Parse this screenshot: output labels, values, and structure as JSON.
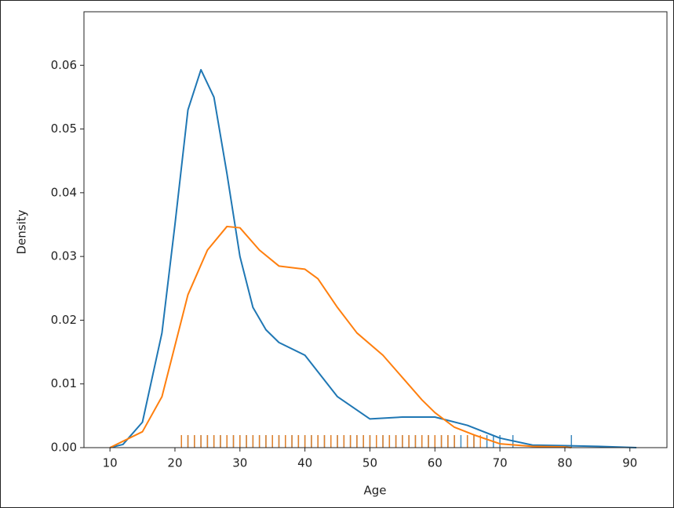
{
  "chart_data": {
    "type": "kde",
    "x_label": "Age",
    "y_label": "Density",
    "xlim": [
      6,
      95.7
    ],
    "ylim": [
      0,
      0.0684
    ],
    "xticks": [
      10,
      20,
      30,
      40,
      50,
      60,
      70,
      80,
      90
    ],
    "yticks": [
      {
        "value": 0,
        "label": "0.00"
      },
      {
        "value": 0.01,
        "label": "0.01"
      },
      {
        "value": 0.02,
        "label": "0.02"
      },
      {
        "value": 0.03,
        "label": "0.03"
      },
      {
        "value": 0.04,
        "label": "0.04"
      },
      {
        "value": 0.05,
        "label": "0.05"
      },
      {
        "value": 0.06,
        "label": "0.06"
      }
    ],
    "series": [
      {
        "color": "#1f77b4",
        "x": [
          10,
          12,
          15,
          18,
          20,
          22,
          24,
          26,
          28,
          30,
          32,
          34,
          36,
          40,
          45,
          50,
          55,
          60,
          65,
          70,
          75,
          80,
          85,
          91
        ],
        "values": [
          0,
          0.0005,
          0.004,
          0.018,
          0.035,
          0.053,
          0.0593,
          0.055,
          0.043,
          0.03,
          0.022,
          0.0185,
          0.0165,
          0.0145,
          0.008,
          0.0045,
          0.0048,
          0.0048,
          0.0035,
          0.0015,
          0.0004,
          0.0003,
          0.0002,
          0
        ],
        "rug": [
          21,
          22,
          23,
          24,
          25,
          26,
          27,
          28,
          29,
          30,
          31,
          32,
          33,
          34,
          35,
          36,
          37,
          38,
          39,
          40,
          41,
          42,
          43,
          44,
          45,
          46,
          47,
          48,
          49,
          50,
          51,
          52,
          53,
          54,
          55,
          56,
          57,
          58,
          59,
          60,
          61,
          62,
          63,
          64,
          65,
          66,
          68,
          69,
          70,
          72,
          81
        ]
      },
      {
        "color": "#ff7f0e",
        "x": [
          10,
          15,
          18,
          20,
          22,
          25,
          28,
          30,
          33,
          36,
          40,
          42,
          45,
          48,
          52,
          55,
          58,
          60,
          63,
          66,
          70,
          75,
          80,
          81
        ],
        "values": [
          0,
          0.0025,
          0.008,
          0.016,
          0.024,
          0.031,
          0.0347,
          0.0345,
          0.031,
          0.0285,
          0.028,
          0.0265,
          0.022,
          0.018,
          0.0145,
          0.011,
          0.0075,
          0.0055,
          0.0032,
          0.002,
          0.0006,
          0.0002,
          0.0001,
          0
        ],
        "rug": [
          21,
          22,
          23,
          24,
          25,
          26,
          27,
          28,
          29,
          30,
          31,
          32,
          33,
          34,
          35,
          36,
          37,
          38,
          39,
          40,
          41,
          42,
          43,
          44,
          45,
          46,
          47,
          48,
          49,
          50,
          51,
          52,
          53,
          54,
          55,
          56,
          57,
          58,
          59,
          60,
          61,
          62,
          63,
          65,
          66,
          67
        ]
      }
    ]
  }
}
